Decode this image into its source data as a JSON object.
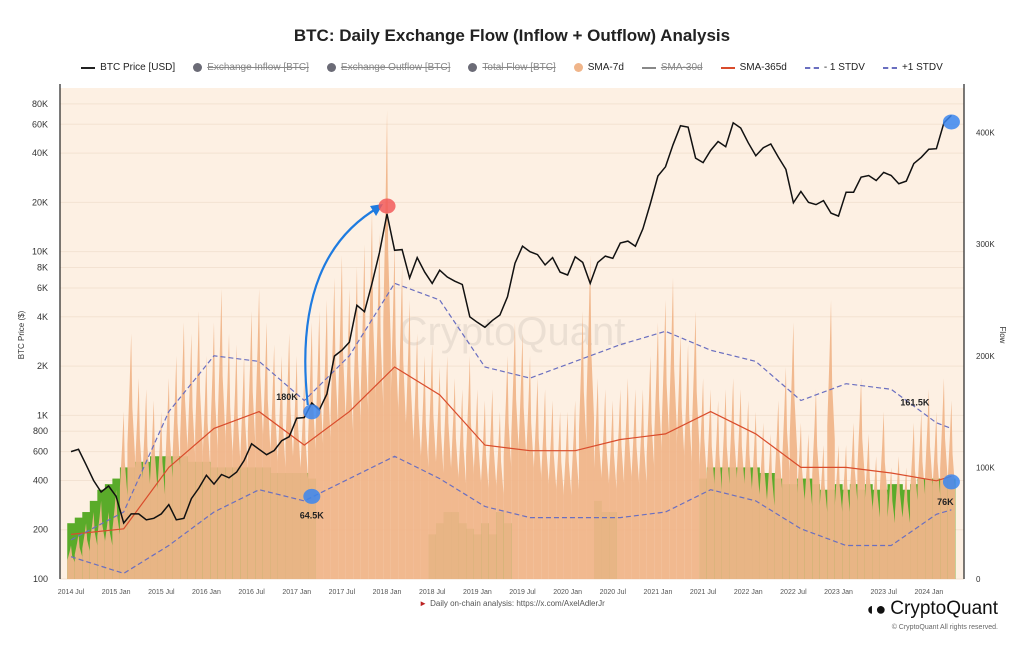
{
  "title": "BTC: Daily Exchange Flow (Inflow + Outflow) Analysis",
  "legend": [
    {
      "label": "BTC Price [USD]",
      "swatch": "line",
      "color": "#222222",
      "hidden": false
    },
    {
      "label": "Exchange Inflow [BTC]",
      "swatch": "dot",
      "color": "#6b6b76",
      "hidden": true
    },
    {
      "label": "Exchange Outflow [BTC]",
      "swatch": "dot",
      "color": "#6b6b76",
      "hidden": true
    },
    {
      "label": "Total Flow [BTC]",
      "swatch": "dot",
      "color": "#6b6b76",
      "hidden": true
    },
    {
      "label": "SMA-7d",
      "swatch": "dot",
      "color": "#f0b58a",
      "hidden": false
    },
    {
      "label": "SMA-30d",
      "swatch": "line",
      "color": "#888888",
      "hidden": true
    },
    {
      "label": "SMA-365d",
      "swatch": "line",
      "color": "#d94c2c",
      "hidden": false
    },
    {
      "label": "- 1 STDV",
      "swatch": "dash",
      "color": "#6a6fc0",
      "hidden": false
    },
    {
      "label": "+1 STDV",
      "swatch": "dash",
      "color": "#6a6fc0",
      "hidden": false
    }
  ],
  "footer": {
    "note": "Daily on-chain analysis: https://x.com/AxelAdlerJr",
    "brand": "CryptoQuant",
    "copyright": "© CryptoQuant All rights reserved.",
    "watermark": "CryptoQuant"
  },
  "chart_data": {
    "type": "line",
    "title": "BTC: Daily Exchange Flow (Inflow + Outflow) Analysis",
    "ylabel_left": "BTC Price ($)",
    "ylabel_right": "Flow",
    "y_left_scale": "log",
    "y_left_range": [
      100,
      100000
    ],
    "y_left_ticks": [
      "100",
      "200",
      "400",
      "600",
      "800",
      "1K",
      "2K",
      "4K",
      "6K",
      "8K",
      "10K",
      "20K",
      "40K",
      "60K",
      "80K"
    ],
    "y_left_tick_values": [
      100,
      200,
      400,
      600,
      800,
      1000,
      2000,
      4000,
      6000,
      8000,
      10000,
      20000,
      40000,
      60000,
      80000
    ],
    "y_right_range": [
      0,
      440000
    ],
    "y_right_ticks": [
      "0",
      "100K",
      "200K",
      "300K",
      "400K"
    ],
    "y_right_tick_values": [
      0,
      100000,
      200000,
      300000,
      400000
    ],
    "x_ticks": [
      "2014 Jul",
      "2015 Jan",
      "2015 Jul",
      "2016 Jan",
      "2016 Jul",
      "2017 Jan",
      "2017 Jul",
      "2018 Jan",
      "2018 Jul",
      "2019 Jan",
      "2019 Jul",
      "2020 Jan",
      "2020 Jul",
      "2021 Jan",
      "2021 Jul",
      "2022 Jan",
      "2022 Jul",
      "2023 Jan",
      "2023 Jul",
      "2024 Jan"
    ],
    "x_tick_dates": [
      "2014-07",
      "2015-01",
      "2015-07",
      "2016-01",
      "2016-07",
      "2017-01",
      "2017-07",
      "2018-01",
      "2018-07",
      "2019-01",
      "2019-07",
      "2020-01",
      "2020-07",
      "2021-01",
      "2021-07",
      "2022-01",
      "2022-07",
      "2023-01",
      "2023-07",
      "2024-01"
    ],
    "grid": true,
    "legend_position": "top",
    "months": [
      "2014-06",
      "2014-07",
      "2014-08",
      "2014-09",
      "2014-10",
      "2014-11",
      "2014-12",
      "2015-01",
      "2015-02",
      "2015-03",
      "2015-04",
      "2015-05",
      "2015-06",
      "2015-07",
      "2015-08",
      "2015-09",
      "2015-10",
      "2015-11",
      "2015-12",
      "2016-01",
      "2016-02",
      "2016-03",
      "2016-04",
      "2016-05",
      "2016-06",
      "2016-07",
      "2016-08",
      "2016-09",
      "2016-10",
      "2016-11",
      "2016-12",
      "2017-01",
      "2017-02",
      "2017-03",
      "2017-04",
      "2017-05",
      "2017-06",
      "2017-07",
      "2017-08",
      "2017-09",
      "2017-10",
      "2017-11",
      "2017-12",
      "2018-01",
      "2018-02",
      "2018-03",
      "2018-04",
      "2018-05",
      "2018-06",
      "2018-07",
      "2018-08",
      "2018-09",
      "2018-10",
      "2018-11",
      "2018-12",
      "2019-01",
      "2019-02",
      "2019-03",
      "2019-04",
      "2019-05",
      "2019-06",
      "2019-07",
      "2019-08",
      "2019-09",
      "2019-10",
      "2019-11",
      "2019-12",
      "2020-01",
      "2020-02",
      "2020-03",
      "2020-04",
      "2020-05",
      "2020-06",
      "2020-07",
      "2020-08",
      "2020-09",
      "2020-10",
      "2020-11",
      "2020-12",
      "2021-01",
      "2021-02",
      "2021-03",
      "2021-04",
      "2021-05",
      "2021-06",
      "2021-07",
      "2021-08",
      "2021-09",
      "2021-10",
      "2021-11",
      "2021-12",
      "2022-01",
      "2022-02",
      "2022-03",
      "2022-04",
      "2022-05",
      "2022-06",
      "2022-07",
      "2022-08",
      "2022-09",
      "2022-10",
      "2022-11",
      "2022-12",
      "2023-01",
      "2023-02",
      "2023-03",
      "2023-04",
      "2023-05",
      "2023-06",
      "2023-07",
      "2023-08",
      "2023-09",
      "2023-10",
      "2023-11",
      "2023-12",
      "2024-01",
      "2024-02",
      "2024-03"
    ],
    "series": [
      {
        "name": "BTC Price [USD]",
        "axis": "left",
        "color": "#111111",
        "values": [
          600,
          620,
          500,
          400,
          340,
          370,
          320,
          220,
          250,
          250,
          230,
          235,
          250,
          285,
          230,
          235,
          310,
          360,
          430,
          380,
          435,
          415,
          450,
          530,
          670,
          620,
          575,
          610,
          700,
          740,
          960,
          970,
          1190,
          1080,
          1350,
          2300,
          2500,
          2800,
          4700,
          4300,
          6400,
          9900,
          17000,
          10200,
          10300,
          6900,
          9200,
          7500,
          6400,
          7700,
          7000,
          6600,
          6300,
          4000,
          3700,
          3450,
          3800,
          4100,
          5300,
          8500,
          10800,
          10000,
          9600,
          8300,
          9200,
          7500,
          7200,
          9300,
          8600,
          6400,
          8600,
          9400,
          9100,
          11300,
          11600,
          10800,
          13800,
          19700,
          29000,
          33000,
          45000,
          58800,
          57700,
          37300,
          35000,
          41500,
          47100,
          43800,
          61300,
          57000,
          46300,
          38500,
          43200,
          45500,
          37700,
          31800,
          19900,
          23300,
          20000,
          19400,
          20500,
          17200,
          16500,
          23100,
          23100,
          28500,
          29200,
          27200,
          30500,
          29200,
          26000,
          27000,
          34500,
          37700,
          42300,
          42600,
          61200,
          68000
        ]
      },
      {
        "name": "SMA-7d",
        "axis": "right",
        "color": "#f0b58a",
        "values": [
          30000,
          40000,
          50000,
          60000,
          70000,
          60000,
          80000,
          150000,
          220000,
          180000,
          170000,
          160000,
          150000,
          180000,
          200000,
          230000,
          220000,
          240000,
          200000,
          230000,
          260000,
          220000,
          210000,
          200000,
          240000,
          260000,
          230000,
          210000,
          200000,
          220000,
          200000,
          180000,
          230000,
          240000,
          250000,
          270000,
          290000,
          260000,
          280000,
          300000,
          330000,
          310000,
          420000,
          300000,
          280000,
          250000,
          220000,
          200000,
          210000,
          190000,
          200000,
          180000,
          170000,
          200000,
          170000,
          160000,
          170000,
          150000,
          200000,
          230000,
          220000,
          200000,
          180000,
          170000,
          160000,
          150000,
          150000,
          160000,
          240000,
          290000,
          180000,
          170000,
          160000,
          170000,
          180000,
          170000,
          170000,
          200000,
          230000,
          250000,
          270000,
          220000,
          210000,
          240000,
          180000,
          170000,
          160000,
          170000,
          180000,
          170000,
          160000,
          150000,
          140000,
          130000,
          160000,
          190000,
          230000,
          140000,
          130000,
          170000,
          120000,
          250000,
          120000,
          120000,
          140000,
          180000,
          130000,
          110000,
          150000,
          100000,
          110000,
          100000,
          140000,
          150000,
          170000,
          150000,
          180000,
          160000
        ]
      },
      {
        "axis": "right",
        "color": "#5aab2a",
        "values": [
          50000,
          55000,
          60000,
          70000,
          80000,
          85000,
          90000,
          100000,
          100000,
          105000,
          105000,
          110000,
          110000,
          110000,
          110000,
          110000,
          105000,
          105000,
          105000,
          100000,
          100000,
          100000,
          100000,
          100000,
          100000,
          100000,
          100000,
          95000,
          95000,
          95000,
          95000,
          95000,
          90000,
          0,
          0,
          0,
          0,
          0,
          0,
          0,
          0,
          0,
          0,
          0,
          0,
          0,
          0,
          0,
          40000,
          50000,
          60000,
          60000,
          50000,
          45000,
          40000,
          50000,
          40000,
          60000,
          50000,
          0,
          0,
          0,
          0,
          0,
          0,
          0,
          0,
          0,
          0,
          0,
          70000,
          60000,
          60000,
          0,
          0,
          0,
          0,
          0,
          0,
          0,
          0,
          0,
          0,
          0,
          90000,
          100000,
          100000,
          100000,
          100000,
          100000,
          100000,
          100000,
          95000,
          95000,
          90000,
          85000,
          85000,
          90000,
          90000,
          85000,
          80000,
          80000,
          85000,
          80000,
          85000,
          80000,
          85000,
          80000,
          80000,
          85000,
          85000,
          80000,
          85000,
          90000,
          90000,
          90000,
          90000,
          90000
        ]
      },
      {
        "name": "SMA-365d",
        "axis": "right",
        "color": "#d94c2c",
        "x": [
          "2014-06",
          "2015-01",
          "2015-07",
          "2016-01",
          "2016-07",
          "2017-01",
          "2017-07",
          "2018-01",
          "2018-07",
          "2019-01",
          "2019-07",
          "2020-01",
          "2020-07",
          "2021-01",
          "2021-07",
          "2022-01",
          "2022-07",
          "2023-01",
          "2023-07",
          "2024-01",
          "2024-03"
        ],
        "values": [
          40000,
          45000,
          100000,
          135000,
          150000,
          120000,
          150000,
          190000,
          165000,
          120000,
          115000,
          115000,
          125000,
          130000,
          150000,
          130000,
          100000,
          100000,
          95000,
          88000,
          92000
        ]
      },
      {
        "name": "+1 STDV",
        "axis": "right",
        "color": "#6a6fc0",
        "dash": true,
        "x": [
          "2014-06",
          "2015-01",
          "2015-07",
          "2016-01",
          "2016-07",
          "2017-01",
          "2017-07",
          "2018-01",
          "2018-07",
          "2019-01",
          "2019-07",
          "2020-01",
          "2020-07",
          "2021-01",
          "2021-07",
          "2022-01",
          "2022-07",
          "2023-01",
          "2023-07",
          "2024-01",
          "2024-03"
        ],
        "values": [
          35000,
          60000,
          150000,
          200000,
          195000,
          160000,
          200000,
          265000,
          250000,
          190000,
          180000,
          195000,
          210000,
          222000,
          205000,
          195000,
          160000,
          175000,
          170000,
          140000,
          135000
        ]
      },
      {
        "name": "- 1 STDV",
        "axis": "right",
        "color": "#6a6fc0",
        "dash": true,
        "x": [
          "2014-06",
          "2015-01",
          "2015-07",
          "2016-01",
          "2016-07",
          "2017-01",
          "2017-07",
          "2018-01",
          "2018-07",
          "2019-01",
          "2019-07",
          "2020-01",
          "2020-07",
          "2021-01",
          "2021-07",
          "2022-01",
          "2022-07",
          "2023-01",
          "2023-07",
          "2024-01",
          "2024-03"
        ],
        "values": [
          20000,
          5000,
          30000,
          60000,
          80000,
          70000,
          90000,
          110000,
          90000,
          65000,
          55000,
          55000,
          55000,
          60000,
          80000,
          70000,
          45000,
          30000,
          30000,
          58000,
          62000
        ]
      }
    ],
    "annotations": [
      {
        "label": "180K",
        "marker": "blue",
        "date": "2017-02",
        "price": 1050
      },
      {
        "label": "64.5K",
        "marker": "blue",
        "date": "2017-02",
        "flow": 74000
      },
      {
        "label": "",
        "marker": "red",
        "date": "2017-12",
        "price": 19000
      },
      {
        "label": "",
        "marker": "blue",
        "date": "2024-03",
        "price": 62000
      },
      {
        "label": "161.5K",
        "marker": "none",
        "date": "2023-12",
        "flow": 152000
      },
      {
        "label": "76K",
        "marker": "blue",
        "date": "2024-03",
        "flow": 87000
      }
    ],
    "arrow": {
      "from_date": "2017-02",
      "to_date": "2017-12",
      "color": "#1e7be0"
    }
  }
}
